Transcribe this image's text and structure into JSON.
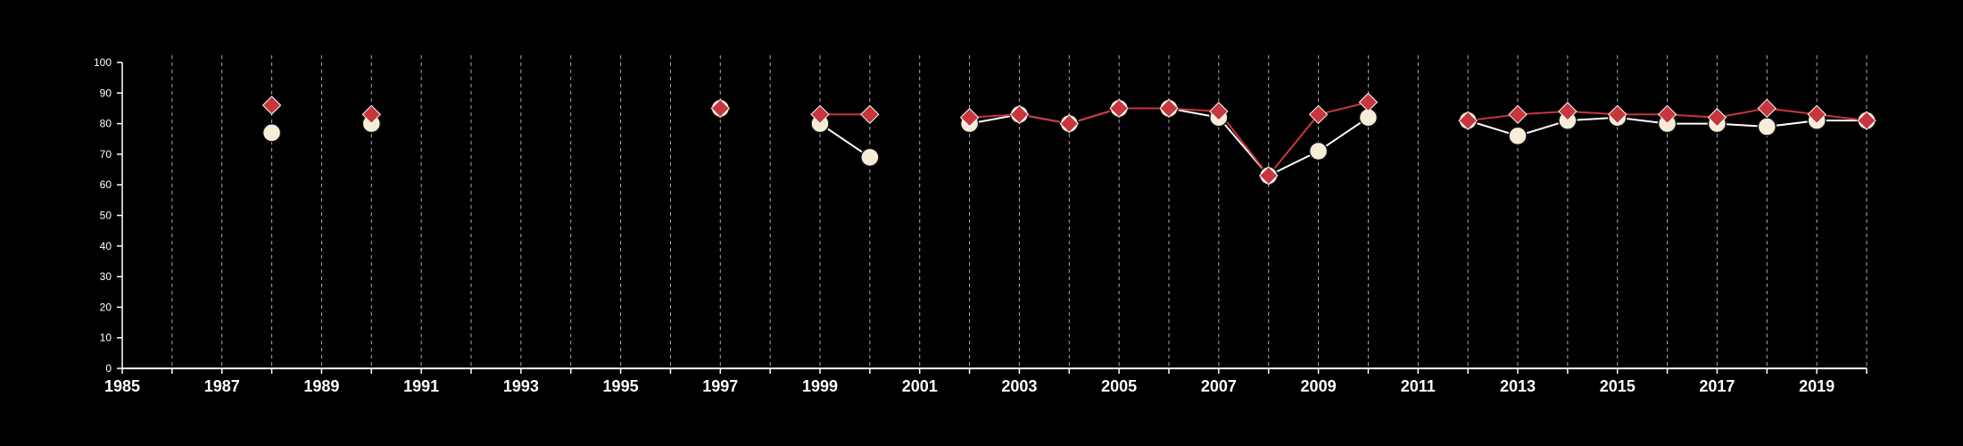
{
  "colors": {
    "background": "#000000",
    "axis": "#ffffff",
    "grid": "#aaaaaa",
    "series_circle_fill": "#f6ecd8",
    "series_circle_line": "#ffffff",
    "series_diamond": "#c8363d"
  },
  "chart_data": {
    "type": "line",
    "title": "",
    "xlabel": "",
    "ylabel": "",
    "xlim": [
      1985,
      2020
    ],
    "ylim": [
      0,
      100
    ],
    "x_ticks_labeled": [
      1985,
      1987,
      1989,
      1991,
      1993,
      1995,
      1997,
      1999,
      2001,
      2003,
      2005,
      2007,
      2009,
      2011,
      2013,
      2015,
      2017,
      2019
    ],
    "y_ticks": [
      0,
      10,
      20,
      30,
      40,
      50,
      60,
      70,
      80,
      90,
      100
    ],
    "grid": "vertical dashed lines at every year",
    "legend": "none",
    "series": [
      {
        "marker": "circle",
        "points": [
          [
            1988,
            77
          ],
          [
            1990,
            80
          ],
          [
            1997,
            85
          ],
          [
            1999,
            80
          ],
          [
            2000,
            69
          ],
          [
            2002,
            80
          ],
          [
            2003,
            83
          ],
          [
            2004,
            80
          ],
          [
            2005,
            85
          ],
          [
            2006,
            85
          ],
          [
            2007,
            82
          ],
          [
            2008,
            63
          ],
          [
            2009,
            71
          ],
          [
            2010,
            82
          ],
          [
            2012,
            81
          ],
          [
            2013,
            76
          ],
          [
            2014,
            81
          ],
          [
            2015,
            82
          ],
          [
            2016,
            80
          ],
          [
            2017,
            80
          ],
          [
            2018,
            79
          ],
          [
            2019,
            81
          ],
          [
            2020,
            81
          ]
        ]
      },
      {
        "marker": "diamond",
        "points": [
          [
            1988,
            86
          ],
          [
            1990,
            83
          ],
          [
            1997,
            85
          ],
          [
            1999,
            83
          ],
          [
            2000,
            83
          ],
          [
            2002,
            82
          ],
          [
            2003,
            83
          ],
          [
            2004,
            80
          ],
          [
            2005,
            85
          ],
          [
            2006,
            85
          ],
          [
            2007,
            84
          ],
          [
            2008,
            63
          ],
          [
            2009,
            83
          ],
          [
            2010,
            87
          ],
          [
            2012,
            81
          ],
          [
            2013,
            83
          ],
          [
            2014,
            84
          ],
          [
            2015,
            83
          ],
          [
            2016,
            83
          ],
          [
            2017,
            82
          ],
          [
            2018,
            85
          ],
          [
            2019,
            83
          ],
          [
            2020,
            81
          ]
        ]
      }
    ]
  }
}
